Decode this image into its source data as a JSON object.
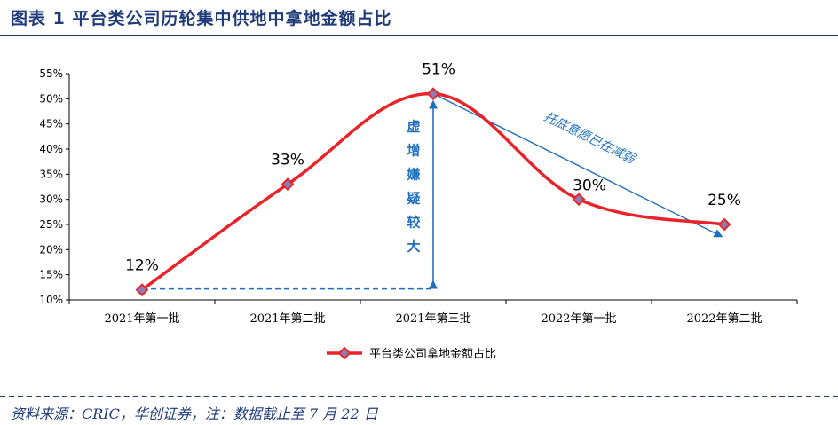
{
  "header": {
    "title": "图表 1    平台类公司历轮集中供地中拿地金额占比"
  },
  "footer": {
    "source": "资料来源：CRIC，华创证券，注：数据截止至 7 月 22 日"
  },
  "chart_data": {
    "type": "line",
    "categories": [
      "2021年第一批",
      "2021年第二批",
      "2021年第三批",
      "2022年第一批",
      "2022年第二批"
    ],
    "series": [
      {
        "name": "平台类公司拿地金额占比",
        "values": [
          12,
          33,
          51,
          30,
          25
        ],
        "color": "#e8232a",
        "marker_color": "#8a7fb5"
      }
    ],
    "data_labels": [
      "12%",
      "33%",
      "51%",
      "30%",
      "25%"
    ],
    "y_ticks": [
      "10%",
      "15%",
      "20%",
      "25%",
      "30%",
      "35%",
      "40%",
      "45%",
      "50%",
      "55%"
    ],
    "ylim": [
      10,
      55
    ],
    "grid": false,
    "legend_position": "bottom",
    "annotations": {
      "vertical_text": [
        "虚",
        "增",
        "嫌",
        "疑",
        "较",
        "大"
      ],
      "diagonal_text": "托底意愿已在减弱",
      "arrow_color": "#1f6fc0"
    },
    "title": "",
    "xlabel": "",
    "ylabel": ""
  }
}
